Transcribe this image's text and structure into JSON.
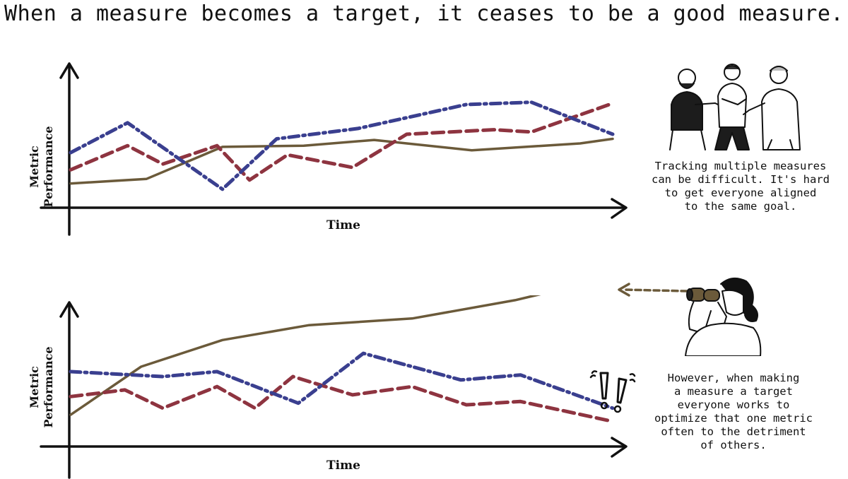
{
  "title": "When a measure becomes a target, it ceases to be a good measure.",
  "captions": {
    "top": [
      "Tracking multiple measures",
      "can be difficult. It's hard",
      "to get everyone aligned",
      "to the same goal."
    ],
    "bottom": [
      "However, when making",
      "a measure a target",
      "everyone works to",
      "optimize that one metric",
      "often to the detriment",
      "of others."
    ]
  },
  "colors": {
    "blue": "#3a3f8f",
    "red": "#8e3440",
    "brown": "#6b5a3a",
    "axis": "#111111"
  },
  "icons": {
    "top": "people-arguing-icon",
    "bottom": "person-with-binoculars-icon",
    "alert": "exclamation-marks-icon",
    "arrow": "dashed-arrow-icon"
  },
  "chart_data": [
    {
      "type": "line",
      "xlabel": "Time",
      "ylabel": "Metric Performance",
      "xlim": [
        0,
        10
      ],
      "ylim": [
        0,
        10
      ],
      "series": [
        {
          "color": "#3a3f8f",
          "style": "dashdot",
          "x": [
            0,
            1.05,
            2.8,
            3.8,
            5.3,
            7.3,
            8.5,
            10
          ],
          "y": [
            4.2,
            6.8,
            1.0,
            5.4,
            6.3,
            8.4,
            8.6,
            5.8
          ]
        },
        {
          "color": "#8e3440",
          "style": "dashed",
          "x": [
            0,
            1.05,
            1.7,
            2.7,
            3.3,
            4.0,
            5.2,
            6.2,
            7.8,
            8.5,
            10
          ],
          "y": [
            2.7,
            4.8,
            3.2,
            4.8,
            1.8,
            4.0,
            2.9,
            5.8,
            6.2,
            6.0,
            8.5
          ]
        },
        {
          "color": "#6b5a3a",
          "style": "solid",
          "x": [
            0,
            1.4,
            2.8,
            4.3,
            5.6,
            7.4,
            9.4,
            10
          ],
          "y": [
            1.5,
            1.9,
            4.7,
            4.8,
            5.3,
            4.4,
            5.0,
            5.4
          ]
        }
      ]
    },
    {
      "type": "line",
      "xlabel": "Time",
      "ylabel": "Metric Performance",
      "xlim": [
        0,
        10
      ],
      "ylim": [
        0,
        10
      ],
      "series": [
        {
          "color": "#3a3f8f",
          "style": "dashdot",
          "x": [
            0,
            1.7,
            2.7,
            4.2,
            5.4,
            7.2,
            8.3,
            10
          ],
          "y": [
            4.0,
            3.7,
            4.0,
            2.1,
            5.1,
            3.5,
            3.8,
            1.8
          ]
        },
        {
          "color": "#8e3440",
          "style": "dashed",
          "x": [
            0,
            1.0,
            1.7,
            2.7,
            3.4,
            4.1,
            5.2,
            6.3,
            7.3,
            8.3,
            10
          ],
          "y": [
            2.5,
            2.9,
            1.8,
            3.1,
            1.8,
            3.7,
            2.6,
            3.1,
            2.0,
            2.2,
            1.0
          ]
        },
        {
          "color": "#6b5a3a",
          "style": "solid",
          "x": [
            0,
            1.3,
            2.8,
            4.4,
            6.3,
            8.2,
            9.1,
            10
          ],
          "y": [
            1.4,
            4.3,
            5.9,
            6.8,
            7.2,
            8.3,
            9.0,
            10.5
          ]
        }
      ]
    }
  ]
}
